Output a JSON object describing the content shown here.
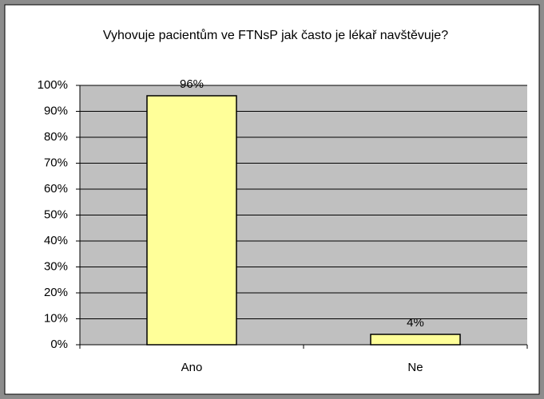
{
  "chart_data": {
    "type": "bar",
    "title": "Vyhovuje pacientům ve FTNsP jak často je lékař navštěvuje?",
    "categories": [
      "Ano",
      "Ne"
    ],
    "values": [
      96,
      4
    ],
    "value_labels": [
      "96%",
      "4%"
    ],
    "color": "#ffff99",
    "ylim": [
      0,
      100
    ],
    "yticks": [
      {
        "value": 0,
        "label": "0%"
      },
      {
        "value": 10,
        "label": "10%"
      },
      {
        "value": 20,
        "label": "20%"
      },
      {
        "value": 30,
        "label": "30%"
      },
      {
        "value": 40,
        "label": "40%"
      },
      {
        "value": 50,
        "label": "50%"
      },
      {
        "value": 60,
        "label": "60%"
      },
      {
        "value": 70,
        "label": "70%"
      },
      {
        "value": 80,
        "label": "80%"
      },
      {
        "value": 90,
        "label": "90%"
      },
      {
        "value": 100,
        "label": "100%"
      }
    ],
    "grid": true
  }
}
